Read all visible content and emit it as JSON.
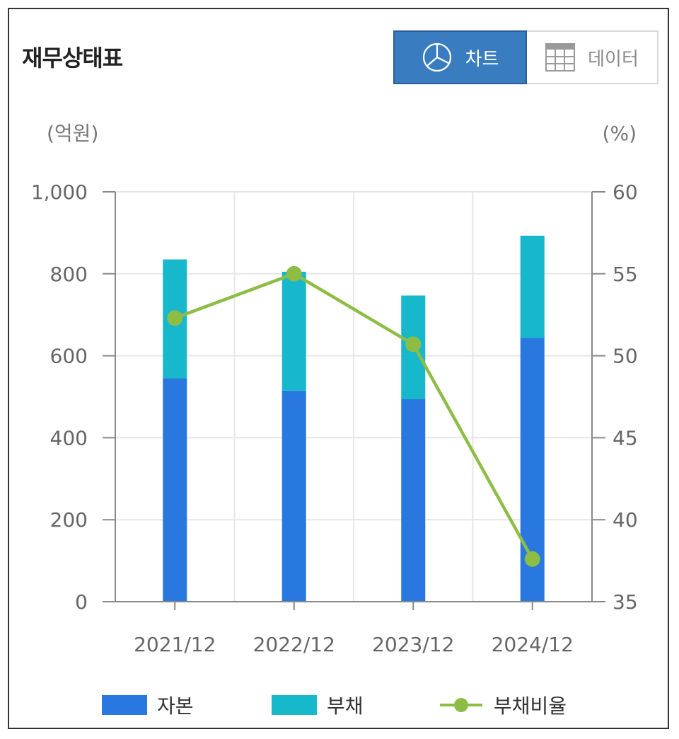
{
  "header": {
    "title": "재무상태표",
    "tab_chart_label": "차트",
    "tab_data_label": "데이터",
    "tab_chart_icon": "pie-chart-icon",
    "tab_data_icon": "table-grid-icon"
  },
  "colors": {
    "capital": "#2878e0",
    "liability": "#17b8cc",
    "ratio": "#8dbd45",
    "active_tab": "#3a7cc0"
  },
  "chart_data": {
    "type": "bar",
    "stacked": true,
    "categories": [
      "2021/12",
      "2022/12",
      "2023/12",
      "2024/12"
    ],
    "series": [
      {
        "name": "자본",
        "type": "bar",
        "axis": "left",
        "values": [
          545,
          515,
          494,
          644
        ]
      },
      {
        "name": "부채",
        "type": "bar",
        "axis": "left",
        "values": [
          290,
          290,
          253,
          249
        ]
      },
      {
        "name": "부채비율",
        "type": "line",
        "axis": "right",
        "values": [
          52.3,
          55.0,
          50.7,
          37.6
        ]
      }
    ],
    "left_axis": {
      "unit": "(억원)",
      "ylim": [
        0,
        1000
      ],
      "ticks": [
        "1,000",
        "800",
        "600",
        "400",
        "200",
        "0"
      ],
      "tick_values": [
        1000,
        800,
        600,
        400,
        200,
        0
      ]
    },
    "right_axis": {
      "unit": "(%)",
      "ylim": [
        35,
        60
      ],
      "ticks": [
        "60",
        "55",
        "50",
        "45",
        "40",
        "35"
      ],
      "tick_values": [
        60,
        55,
        50,
        45,
        40,
        35
      ]
    },
    "grid": true,
    "legend": "bottom"
  }
}
